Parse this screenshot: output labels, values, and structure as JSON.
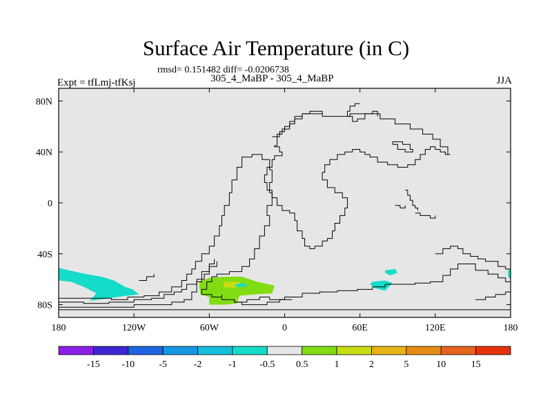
{
  "chart_data": {
    "type": "heatmap",
    "title": "Surface Air Temperature (in C)",
    "stats_line": "rmsd= 0.151482 diff= -0.0206738",
    "left_label": "Expt = tfLmj-tfKsj",
    "center_label": "305_4_MaBP - 305_4_MaBP",
    "season": "JJA",
    "xlim": [
      -180,
      180
    ],
    "ylim": [
      -90,
      90
    ],
    "x_ticks": [
      {
        "value": -180,
        "label": "180"
      },
      {
        "value": -120,
        "label": "120W"
      },
      {
        "value": -60,
        "label": "60W"
      },
      {
        "value": 0,
        "label": "0"
      },
      {
        "value": 60,
        "label": "60E"
      },
      {
        "value": 120,
        "label": "120E"
      },
      {
        "value": 180,
        "label": "180"
      }
    ],
    "y_ticks": [
      {
        "value": 80,
        "label": "80N"
      },
      {
        "value": 40,
        "label": "40N"
      },
      {
        "value": 0,
        "label": "0"
      },
      {
        "value": -40,
        "label": "40S"
      },
      {
        "value": -80,
        "label": "80S"
      }
    ],
    "background_color": "#e6e6e6",
    "colorbar": {
      "colors": [
        "#8a1ee6",
        "#3c28d2",
        "#1e64e1",
        "#1496e1",
        "#14bedc",
        "#14dcc8",
        "#e6e6e6",
        "#82dc14",
        "#c8dc14",
        "#e6b414",
        "#e68c14",
        "#e6641e",
        "#e6320a"
      ],
      "labels": [
        "-15",
        "-10",
        "-5",
        "-2",
        "-1",
        "-0.5",
        "0.5",
        "1",
        "2",
        "5",
        "10",
        "15"
      ]
    },
    "anomaly_regions": [
      {
        "color": "#14dcc8",
        "points": [
          [
            -180,
            -51
          ],
          [
            -172,
            -53
          ],
          [
            -158,
            -56
          ],
          [
            -146,
            -58
          ],
          [
            -136,
            -61
          ],
          [
            -127,
            -66
          ],
          [
            -121,
            -68
          ],
          [
            -116,
            -72
          ],
          [
            -126,
            -73
          ],
          [
            -140,
            -75
          ],
          [
            -155,
            -77
          ],
          [
            -150,
            -71
          ],
          [
            -160,
            -66
          ],
          [
            -170,
            -62
          ],
          [
            -180,
            -61
          ]
        ]
      },
      {
        "color": "#82dc14",
        "points": [
          [
            -68,
            -62
          ],
          [
            -60,
            -59
          ],
          [
            -48,
            -58
          ],
          [
            -34,
            -58
          ],
          [
            -22,
            -62
          ],
          [
            -8,
            -65
          ],
          [
            -10,
            -71
          ],
          [
            -24,
            -72
          ],
          [
            -36,
            -73
          ],
          [
            -38,
            -79
          ],
          [
            -48,
            -80
          ],
          [
            -60,
            -80
          ],
          [
            -60,
            -74
          ],
          [
            -67,
            -72
          ],
          [
            -68,
            -66
          ]
        ]
      },
      {
        "color": "#c8dc14",
        "points": [
          [
            -48,
            -62
          ],
          [
            -36,
            -62
          ],
          [
            -34,
            -65
          ],
          [
            -42,
            -67
          ],
          [
            -49,
            -66
          ]
        ]
      },
      {
        "color": "#14dcc8",
        "points": [
          [
            -40,
            -64
          ],
          [
            -32,
            -63
          ],
          [
            -30,
            -66
          ],
          [
            -38,
            -66
          ]
        ]
      },
      {
        "color": "#14dcc8",
        "points": [
          [
            70,
            -62
          ],
          [
            80,
            -61
          ],
          [
            86,
            -63
          ],
          [
            80,
            -69
          ],
          [
            72,
            -67
          ],
          [
            68,
            -64
          ]
        ]
      },
      {
        "color": "#14dcc8",
        "points": [
          [
            80,
            -53
          ],
          [
            88,
            -52
          ],
          [
            90,
            -55
          ],
          [
            84,
            -57
          ],
          [
            80,
            -55
          ]
        ]
      },
      {
        "color": "#14dcc8",
        "points": [
          [
            178,
            -53
          ],
          [
            180,
            -52
          ],
          [
            180,
            -60
          ],
          [
            178,
            -58
          ]
        ]
      }
    ],
    "land_outlines": [
      [
        [
          -180,
          -75
        ],
        [
          -155,
          -75
        ],
        [
          -138,
          -76
        ],
        [
          -125,
          -74
        ],
        [
          -112,
          -73
        ],
        [
          -100,
          -70
        ],
        [
          -90,
          -66
        ],
        [
          -82,
          -61
        ],
        [
          -78,
          -56
        ],
        [
          -74,
          -52
        ],
        [
          -71,
          -46
        ],
        [
          -66,
          -40
        ],
        [
          -60,
          -34
        ],
        [
          -56,
          -26
        ],
        [
          -52,
          -18
        ],
        [
          -50,
          -10
        ],
        [
          -48,
          -2
        ],
        [
          -44,
          8
        ],
        [
          -42,
          18
        ],
        [
          -38,
          28
        ],
        [
          -34,
          36
        ],
        [
          -26,
          38
        ],
        [
          -18,
          34
        ],
        [
          -12,
          26
        ],
        [
          -10,
          16
        ],
        [
          -12,
          8
        ],
        [
          -10,
          -2
        ],
        [
          -14,
          -10
        ],
        [
          -12,
          -18
        ],
        [
          -16,
          -26
        ],
        [
          -20,
          -36
        ],
        [
          -24,
          -44
        ],
        [
          -28,
          -50
        ],
        [
          -34,
          -54
        ],
        [
          -44,
          -56
        ],
        [
          -54,
          -58
        ],
        [
          -58,
          -62
        ],
        [
          -62,
          -68
        ],
        [
          -66,
          -72
        ],
        [
          -58,
          -74
        ],
        [
          -50,
          -72
        ],
        [
          -50,
          -76
        ],
        [
          -40,
          -78
        ],
        [
          -30,
          -76
        ],
        [
          -20,
          -74
        ],
        [
          -12,
          -76
        ],
        [
          0,
          -74
        ],
        [
          14,
          -71
        ],
        [
          28,
          -70
        ],
        [
          42,
          -69
        ],
        [
          58,
          -68
        ],
        [
          70,
          -66
        ],
        [
          80,
          -64
        ],
        [
          92,
          -64
        ],
        [
          104,
          -63
        ],
        [
          116,
          -62
        ],
        [
          126,
          -57
        ],
        [
          132,
          -52
        ],
        [
          138,
          -48
        ],
        [
          148,
          -48
        ],
        [
          152,
          -53
        ],
        [
          162,
          -56
        ],
        [
          170,
          -59
        ],
        [
          176,
          -62
        ],
        [
          180,
          -63
        ]
      ],
      [
        [
          -180,
          -82
        ],
        [
          -150,
          -82
        ],
        [
          -120,
          -80
        ],
        [
          -90,
          -78
        ],
        [
          -80,
          -76
        ],
        [
          -74,
          -70
        ],
        [
          -70,
          -62
        ],
        [
          -66,
          -54
        ],
        [
          -60,
          -48
        ],
        [
          -56,
          -44
        ]
      ],
      [
        [
          -180,
          -84
        ],
        [
          -100,
          -84
        ],
        [
          -60,
          -84
        ],
        [
          0,
          -84
        ],
        [
          60,
          -84
        ],
        [
          120,
          -84
        ],
        [
          180,
          -84
        ]
      ],
      [
        [
          -180,
          -78
        ],
        [
          -160,
          -79
        ],
        [
          -140,
          -78
        ],
        [
          -120,
          -76
        ],
        [
          -106,
          -75
        ],
        [
          -96,
          -72
        ],
        [
          -88,
          -70
        ],
        [
          -82,
          -68
        ],
        [
          -78,
          -64
        ],
        [
          -70,
          -60
        ],
        [
          -64,
          -56
        ],
        [
          -60,
          -50
        ],
        [
          -54,
          -46
        ]
      ],
      [
        [
          -40,
          -78
        ],
        [
          -34,
          -80
        ],
        [
          -24,
          -80
        ],
        [
          -14,
          -78
        ],
        [
          -4,
          -76
        ],
        [
          6,
          -76
        ]
      ],
      [
        [
          -6,
          45
        ],
        [
          -8,
          44
        ],
        [
          -4,
          40
        ],
        [
          -2,
          37
        ],
        [
          -8,
          34
        ],
        [
          -10,
          28
        ],
        [
          -14,
          22
        ],
        [
          -16,
          16
        ],
        [
          -14,
          10
        ],
        [
          -10,
          4
        ],
        [
          -6,
          -2
        ],
        [
          -2,
          -6
        ],
        [
          4,
          -8
        ],
        [
          8,
          -14
        ],
        [
          10,
          -22
        ],
        [
          14,
          -28
        ],
        [
          16,
          -34
        ],
        [
          20,
          -36
        ],
        [
          24,
          -34
        ],
        [
          30,
          -30
        ],
        [
          34,
          -28
        ],
        [
          38,
          -22
        ],
        [
          40,
          -16
        ],
        [
          44,
          -10
        ],
        [
          48,
          -4
        ],
        [
          50,
          4
        ],
        [
          46,
          8
        ],
        [
          40,
          12
        ],
        [
          34,
          18
        ],
        [
          30,
          24
        ],
        [
          32,
          30
        ],
        [
          36,
          34
        ],
        [
          42,
          38
        ],
        [
          48,
          40
        ],
        [
          54,
          42
        ],
        [
          60,
          40
        ],
        [
          64,
          38
        ],
        [
          68,
          36
        ],
        [
          74,
          32
        ],
        [
          82,
          30
        ],
        [
          90,
          28
        ],
        [
          98,
          30
        ],
        [
          104,
          34
        ],
        [
          108,
          38
        ],
        [
          112,
          42
        ],
        [
          116,
          44
        ],
        [
          120,
          42
        ],
        [
          124,
          40
        ],
        [
          128,
          38
        ],
        [
          132,
          38
        ],
        [
          130,
          44
        ],
        [
          124,
          50
        ],
        [
          118,
          54
        ],
        [
          110,
          58
        ],
        [
          100,
          62
        ],
        [
          88,
          66
        ],
        [
          76,
          70
        ],
        [
          64,
          70
        ],
        [
          52,
          68
        ],
        [
          40,
          68
        ],
        [
          30,
          70
        ],
        [
          22,
          70
        ],
        [
          14,
          68
        ],
        [
          8,
          64
        ],
        [
          4,
          60
        ],
        [
          0,
          56
        ],
        [
          -4,
          52
        ],
        [
          -6,
          48
        ],
        [
          -6,
          45
        ]
      ],
      [
        [
          -10,
          52
        ],
        [
          -6,
          54
        ],
        [
          -2,
          58
        ],
        [
          4,
          62
        ],
        [
          8,
          66
        ],
        [
          14,
          70
        ],
        [
          20,
          72
        ],
        [
          30,
          70
        ]
      ],
      [
        [
          60,
          78
        ],
        [
          56,
          76
        ],
        [
          52,
          72
        ],
        [
          50,
          68
        ],
        [
          54,
          64
        ],
        [
          58,
          66
        ],
        [
          64,
          70
        ],
        [
          70,
          72
        ],
        [
          74,
          68
        ]
      ],
      [
        [
          86,
          46
        ],
        [
          90,
          42
        ],
        [
          96,
          40
        ],
        [
          102,
          42
        ],
        [
          100,
          46
        ],
        [
          94,
          48
        ],
        [
          88,
          48
        ],
        [
          86,
          46
        ]
      ],
      [
        [
          96,
          10
        ],
        [
          98,
          6
        ],
        [
          100,
          2
        ],
        [
          102,
          -2
        ],
        [
          104,
          -4
        ],
        [
          106,
          -6
        ]
      ],
      [
        [
          104,
          -8
        ],
        [
          108,
          -10
        ],
        [
          112,
          -10
        ],
        [
          116,
          -12
        ],
        [
          120,
          -10
        ]
      ],
      [
        [
          88,
          -2
        ],
        [
          92,
          -4
        ],
        [
          96,
          -2
        ]
      ],
      [
        [
          120,
          -40
        ],
        [
          126,
          -36
        ],
        [
          132,
          -34
        ],
        [
          138,
          -36
        ],
        [
          142,
          -40
        ],
        [
          148,
          -42
        ],
        [
          154,
          -44
        ],
        [
          160,
          -46
        ],
        [
          170,
          -50
        ],
        [
          176,
          -52
        ],
        [
          180,
          -54
        ]
      ],
      [
        [
          152,
          -76
        ],
        [
          160,
          -74
        ],
        [
          168,
          -72
        ],
        [
          176,
          -70
        ],
        [
          180,
          -68
        ]
      ],
      [
        [
          -116,
          -61
        ],
        [
          -110,
          -58
        ],
        [
          -104,
          -56
        ]
      ]
    ]
  }
}
